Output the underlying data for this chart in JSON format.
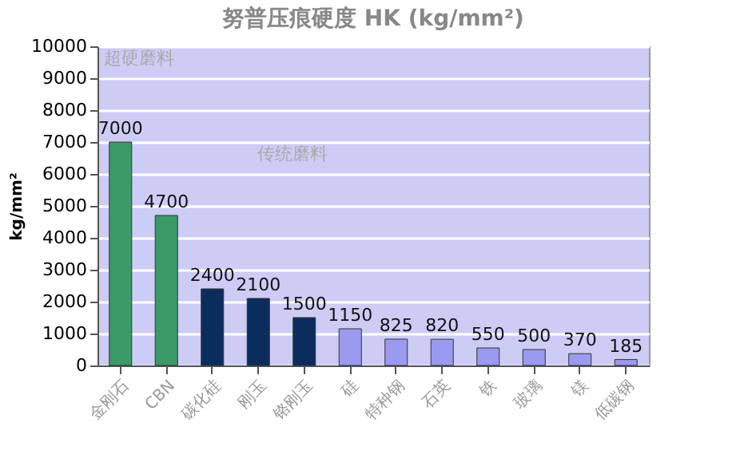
{
  "chart_data": {
    "type": "bar",
    "title": "努普压痕硬度 HK (kg/mm²)",
    "ylabel": "kg/mm²",
    "categories": [
      "金刚石",
      "CBN",
      "碳化硅",
      "刚玉",
      "铬刚玉",
      "硅",
      "特种钢",
      "石英",
      "铁",
      "玻璃",
      "镁",
      "低碳钢"
    ],
    "values": [
      7000,
      4700,
      2400,
      2100,
      1500,
      1150,
      825,
      820,
      550,
      500,
      370,
      185
    ],
    "colors": [
      "#3a9a68",
      "#3a9a68",
      "#0b2d5e",
      "#0b2d5e",
      "#0b2d5e",
      "#9a9af0",
      "#9a9af0",
      "#9a9af0",
      "#9a9af0",
      "#9a9af0",
      "#9a9af0",
      "#9a9af0"
    ],
    "ylim": [
      0,
      10000
    ],
    "yticks": [
      0,
      1000,
      2000,
      3000,
      4000,
      5000,
      6000,
      7000,
      8000,
      9000,
      10000
    ],
    "grid": "y",
    "data_labels": true,
    "annotations": [
      "超硬磨料",
      "传统磨料"
    ]
  }
}
